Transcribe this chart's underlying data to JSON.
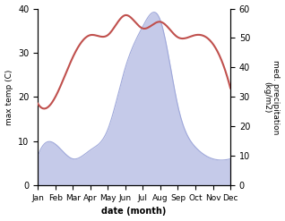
{
  "months": [
    "Jan",
    "Feb",
    "Mar",
    "Apr",
    "May",
    "Jun",
    "Jul",
    "Aug",
    "Sep",
    "Oct",
    "Nov",
    "Dec"
  ],
  "temperature": [
    18.5,
    20.0,
    29.0,
    34.0,
    34.0,
    38.5,
    35.5,
    37.0,
    33.5,
    34.0,
    32.0,
    22.0
  ],
  "precipitation": [
    10,
    14,
    9,
    12,
    19,
    40,
    54,
    56,
    27,
    13,
    9,
    9
  ],
  "temp_color": "#c0504d",
  "precip_color_fill": "#c5cae9",
  "precip_color_line": "#9fa8da",
  "temp_ylim": [
    0,
    40
  ],
  "precip_ylim": [
    0,
    60
  ],
  "xlabel": "date (month)",
  "ylabel_left": "max temp (C)",
  "ylabel_right": "med. precipitation\n(kg/m2)",
  "temp_yticks": [
    0,
    10,
    20,
    30,
    40
  ],
  "precip_yticks": [
    0,
    10,
    20,
    30,
    40,
    50,
    60
  ],
  "title": ""
}
